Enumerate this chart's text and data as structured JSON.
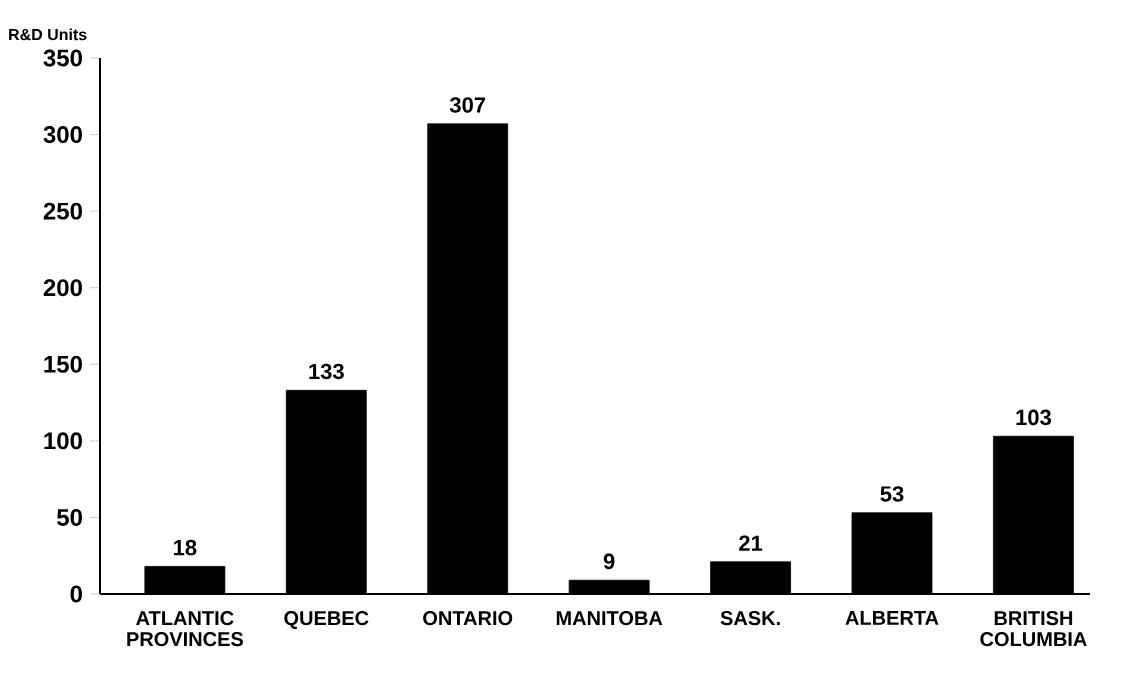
{
  "chart_data": {
    "type": "bar",
    "ylabel": "R&D Units",
    "categories": [
      "ATLANTIC PROVINCES",
      "QUEBEC",
      "ONTARIO",
      "MANITOBA",
      "SASK.",
      "ALBERTA",
      "BRITISH COLUMBIA"
    ],
    "values": [
      18,
      133,
      307,
      9,
      21,
      53,
      103
    ],
    "color": "#000000",
    "ylim": [
      0,
      350
    ],
    "yticks": [
      0,
      50,
      100,
      150,
      200,
      250,
      300,
      350
    ],
    "data_labels": true,
    "grid": false
  }
}
